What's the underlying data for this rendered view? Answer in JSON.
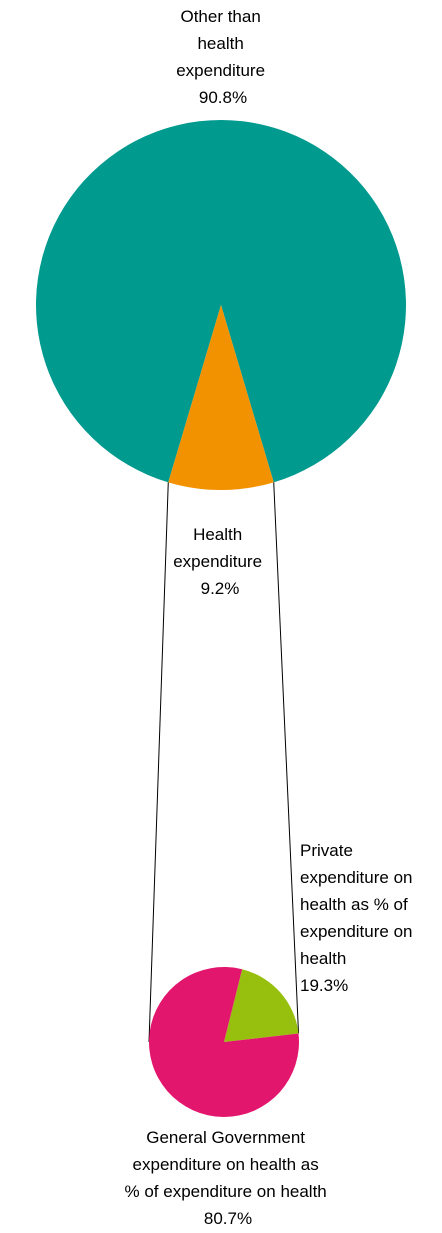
{
  "chart_data": [
    {
      "type": "pie",
      "slices": [
        {
          "label": "Other than health expenditure",
          "label_lines": [
            "Other than",
            "health",
            "expenditure"
          ],
          "value": 90.8,
          "value_text": "90.8%",
          "color": "#009a8f"
        },
        {
          "label": "Health expenditure",
          "label_lines": [
            "Health",
            "expenditure"
          ],
          "value": 9.2,
          "value_text": "9.2%",
          "color": "#f39200"
        }
      ]
    },
    {
      "type": "pie",
      "slices": [
        {
          "label": "Private expenditure on health as % of expenditure on health",
          "label_lines": [
            "Private",
            "expenditure on",
            "health as % of",
            "expenditure on",
            "health"
          ],
          "value": 19.3,
          "value_text": "19.3%",
          "color": "#97bf0d"
        },
        {
          "label": "General Government expenditure on health as % of expenditure on health",
          "label_lines": [
            "General Government",
            "expenditure on health as",
            "% of expenditure on health"
          ],
          "value": 80.7,
          "value_text": "80.7%",
          "color": "#e3166e"
        }
      ]
    }
  ]
}
